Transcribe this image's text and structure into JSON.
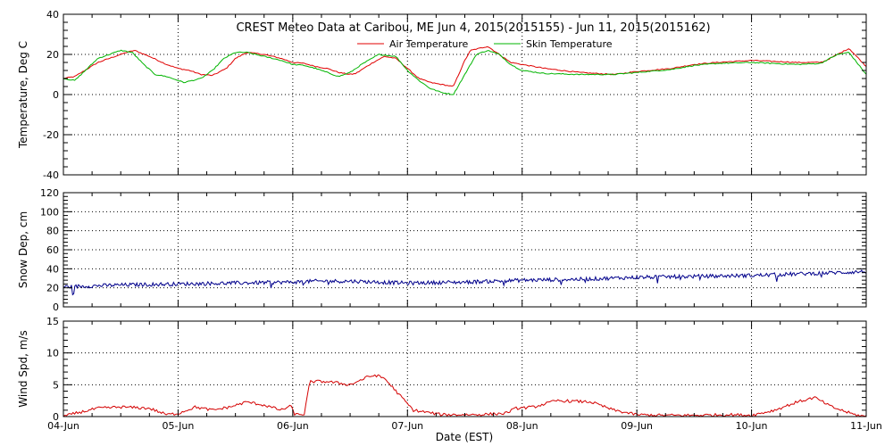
{
  "title": "CREST Meteo Data at Caribou, ME   Jun  4, 2015(2015155) - Jun 11, 2015(2015162)",
  "xlabel": "Date (EST)",
  "x_ticks": [
    "04-Jun",
    "05-Jun",
    "06-Jun",
    "07-Jun",
    "08-Jun",
    "09-Jun",
    "10-Jun",
    "11-Jun"
  ],
  "colors": {
    "air": "#e00000",
    "skin": "#00b400",
    "snow": "#00008b",
    "wind": "#d40000"
  },
  "chart_data": [
    {
      "type": "line",
      "ylabel": "Temperature, Deg C",
      "ylim": [
        -40,
        40
      ],
      "yticks": [
        -40,
        -20,
        0,
        20,
        40
      ],
      "xlim": [
        0,
        7
      ],
      "grid": true,
      "legend_placement": "top-center",
      "series": [
        {
          "name": "Air Temperature",
          "x": [
            0,
            0.1,
            0.3,
            0.55,
            0.62,
            0.75,
            0.9,
            1.0,
            1.1,
            1.2,
            1.3,
            1.42,
            1.5,
            1.6,
            1.75,
            1.9,
            2.0,
            2.1,
            2.2,
            2.3,
            2.4,
            2.5,
            2.55,
            2.7,
            2.8,
            2.9,
            3.0,
            3.1,
            3.2,
            3.3,
            3.4,
            3.5,
            3.55,
            3.7,
            3.8,
            3.9,
            4.0,
            4.2,
            4.5,
            4.8,
            5.0,
            5.3,
            5.5,
            5.7,
            6.0,
            6.2,
            6.4,
            6.6,
            6.65,
            6.75,
            6.85,
            7.0
          ],
          "y": [
            8,
            9,
            16,
            21,
            22,
            19,
            15,
            13,
            12,
            10,
            9.5,
            13,
            18,
            21,
            20,
            18,
            16,
            15.5,
            14,
            13,
            11,
            10,
            10.5,
            16,
            19,
            18,
            13,
            8,
            6,
            5,
            4,
            17,
            22,
            24,
            20,
            16,
            15,
            13,
            11,
            10,
            11.5,
            13,
            15,
            16,
            17,
            16.5,
            16,
            16,
            17,
            20,
            23,
            14
          ]
        },
        {
          "name": "Skin Temperature",
          "x": [
            0,
            0.1,
            0.3,
            0.5,
            0.6,
            0.7,
            0.8,
            0.9,
            1.0,
            1.05,
            1.2,
            1.3,
            1.4,
            1.5,
            1.6,
            1.75,
            1.9,
            2.0,
            2.1,
            2.2,
            2.3,
            2.4,
            2.5,
            2.6,
            2.75,
            2.9,
            3.0,
            3.1,
            3.2,
            3.3,
            3.4,
            3.5,
            3.6,
            3.7,
            3.8,
            3.9,
            4.0,
            4.2,
            4.5,
            4.8,
            5.0,
            5.3,
            5.5,
            5.7,
            6.0,
            6.2,
            6.4,
            6.6,
            6.75,
            6.85,
            7.0
          ],
          "y": [
            8,
            7,
            18,
            22,
            21,
            15,
            10,
            9,
            7,
            6,
            8,
            12,
            18,
            21,
            21,
            19,
            17,
            15,
            14.5,
            13,
            11,
            9,
            11,
            15,
            20,
            19,
            12,
            7,
            3,
            1,
            0,
            10,
            20,
            22,
            20,
            15,
            12,
            10.5,
            10,
            10,
            11,
            12.5,
            14.5,
            15.5,
            16,
            15.5,
            15,
            15.5,
            20,
            21,
            10
          ]
        }
      ]
    },
    {
      "type": "line",
      "ylabel": "Snow Dep, cm",
      "ylim": [
        0,
        120
      ],
      "yticks": [
        0,
        20,
        40,
        60,
        80,
        100,
        120
      ],
      "xlim": [
        0,
        7
      ],
      "grid": true,
      "series": [
        {
          "x": [
            0,
            0.5,
            1.0,
            1.5,
            2.0,
            2.2,
            2.5,
            3.0,
            3.5,
            4.0,
            4.5,
            5.0,
            5.5,
            6.0,
            6.5,
            7.0
          ],
          "y": [
            21,
            23,
            24,
            25,
            26,
            27,
            27,
            25,
            26,
            28,
            29,
            31,
            32,
            33,
            35,
            37
          ],
          "noise_amplitude": 4
        }
      ]
    },
    {
      "type": "line",
      "ylabel": "Wind Spd, m/s",
      "ylim": [
        0,
        15
      ],
      "yticks": [
        0,
        5,
        10,
        15
      ],
      "xlim": [
        0,
        7
      ],
      "grid": true,
      "series": [
        {
          "x": [
            0,
            0.1,
            0.3,
            0.5,
            0.75,
            0.9,
            1.0,
            1.15,
            1.3,
            1.45,
            1.6,
            1.75,
            1.9,
            1.98,
            2.02,
            2.1,
            2.15,
            2.3,
            2.5,
            2.65,
            2.72,
            2.8,
            2.95,
            3.05,
            3.3,
            3.6,
            3.85,
            3.95,
            4.1,
            4.3,
            4.6,
            4.8,
            5.0,
            5.2,
            5.5,
            5.8,
            6.0,
            6.2,
            6.4,
            6.55,
            6.7,
            6.9,
            7.0
          ],
          "y": [
            0,
            0.5,
            1.3,
            1.5,
            1.3,
            0.3,
            0.5,
            1.5,
            1.0,
            1.5,
            2.3,
            1.8,
            1.0,
            1.7,
            0.3,
            0.4,
            5.5,
            5.5,
            5.0,
            6.2,
            6.5,
            6.0,
            3.0,
            1.0,
            0.3,
            0.3,
            0.5,
            1.3,
            1.5,
            2.5,
            2.3,
            1.0,
            0.3,
            0.2,
            0.2,
            0.3,
            0.2,
            1.0,
            2.3,
            3.0,
            1.5,
            0.3,
            0
          ]
        }
      ]
    }
  ]
}
